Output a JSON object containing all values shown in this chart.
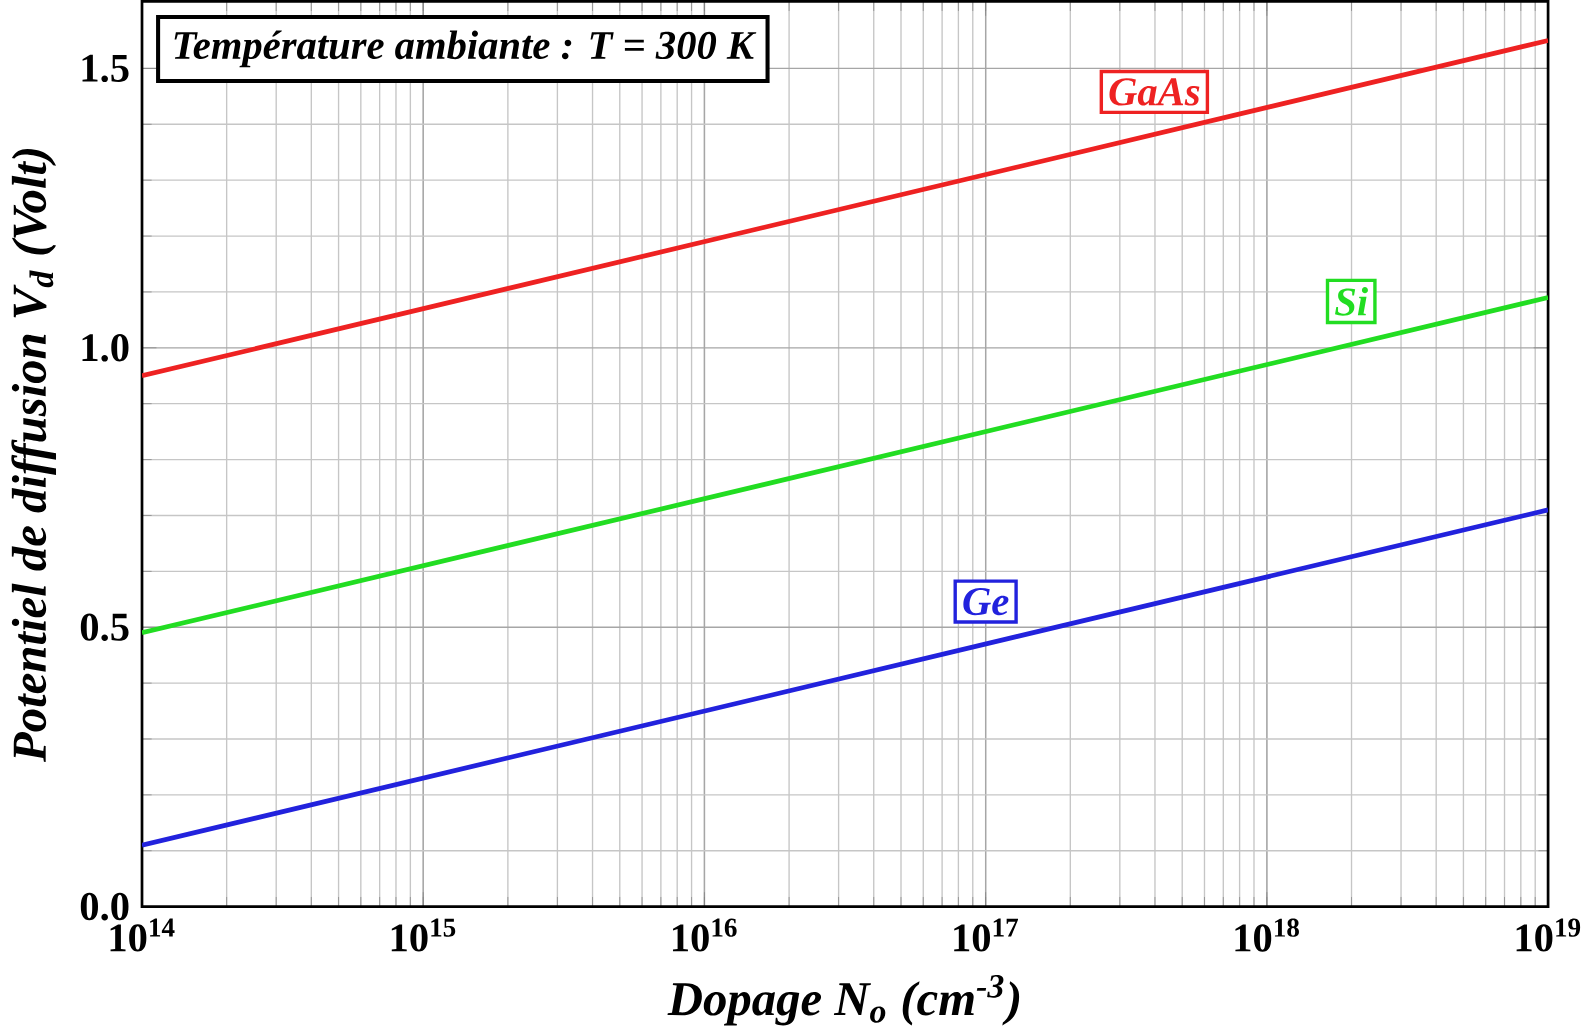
{
  "chart_data": {
    "type": "line",
    "xlabel": "Dopage N$_{o}$ (cm$^{-3}$)",
    "ylabel": "Potentiel de diffusion V$_{d}$ (Volt)",
    "annotations": [
      "Température ambiante : T = 300 K"
    ],
    "log": "x",
    "xlim": [
      100000000000000.0,
      1e+19
    ],
    "xticks": [
      {
        "value": 100000000000000.0,
        "label": "10$^{14}$"
      },
      {
        "value": 1000000000000000.0,
        "label": "10$^{15}$"
      },
      {
        "value": 1e+16,
        "label": "10$^{16}$"
      },
      {
        "value": 1e+17,
        "label": "10$^{17}$"
      },
      {
        "value": 1e+18,
        "label": "10$^{18}$"
      },
      {
        "value": 1e+19,
        "label": "10$^{19}$"
      }
    ],
    "ylim": [
      0,
      1.62
    ],
    "yticks": [
      {
        "value": 0,
        "label": "0.0"
      },
      {
        "value": 0.5,
        "label": "0.5"
      },
      {
        "value": 1.0,
        "label": "1.0"
      },
      {
        "value": 1.5,
        "label": "1.5"
      }
    ],
    "grid": true,
    "line_style": "solid",
    "x": [
      100000000000000.0,
      1e+19
    ],
    "series": [
      {
        "name": "GaAs",
        "color": "#ee2222",
        "values": [
          0.95,
          1.55
        ]
      },
      {
        "name": "Si",
        "color": "#22dd22",
        "values": [
          0.49,
          1.09
        ]
      },
      {
        "name": "Ge",
        "color": "#2222dd",
        "values": [
          0.11,
          0.71
        ]
      }
    ]
  }
}
